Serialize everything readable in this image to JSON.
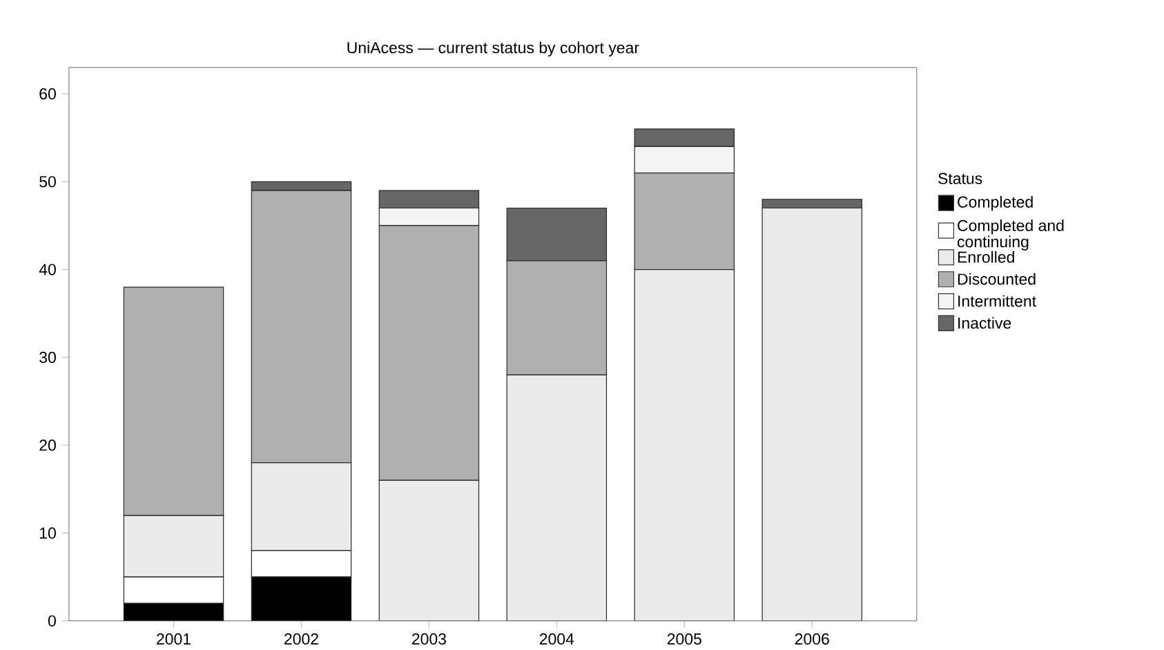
{
  "chart_data": {
    "type": "bar",
    "stacked": true,
    "title": "UniAcess — current status by cohort year",
    "legend_title": "Status",
    "legend": "right",
    "categories": [
      "2001",
      "2002",
      "2003",
      "2004",
      "2005",
      "2006"
    ],
    "ylim": [
      0,
      63
    ],
    "yticks": [
      0,
      10,
      20,
      30,
      40,
      50,
      60
    ],
    "grid": false,
    "series": [
      {
        "name": "Completed",
        "color": "#000000",
        "values": [
          2,
          5,
          0,
          0,
          0,
          0
        ]
      },
      {
        "name": "Completed and continuing",
        "color": "#ffffff",
        "values": [
          3,
          3,
          0,
          0,
          0,
          0
        ]
      },
      {
        "name": "Enrolled",
        "color": "#ebebeb",
        "values": [
          7,
          10,
          16,
          28,
          40,
          47
        ]
      },
      {
        "name": "Discounted",
        "color": "#b0b0b0",
        "values": [
          26,
          31,
          29,
          13,
          11,
          0
        ]
      },
      {
        "name": "Intermittent",
        "color": "#f4f4f4",
        "values": [
          0,
          0,
          2,
          0,
          3,
          0
        ]
      },
      {
        "name": "Inactive",
        "color": "#666666",
        "values": [
          0,
          1,
          2,
          6,
          2,
          1
        ]
      }
    ]
  }
}
